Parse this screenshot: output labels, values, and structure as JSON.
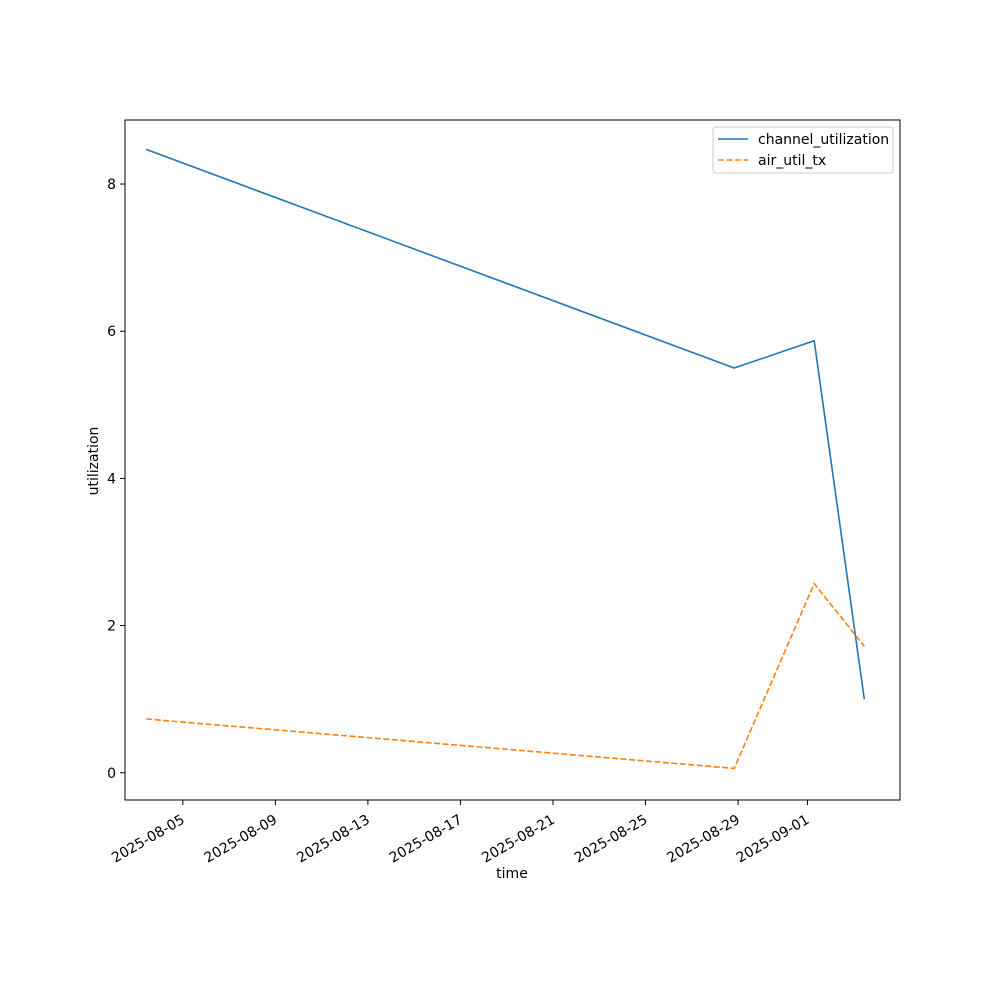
{
  "chart_data": {
    "type": "line",
    "xlabel": "time",
    "ylabel": "utilization",
    "x_ticks": [
      "2025-08-05",
      "2025-08-09",
      "2025-08-13",
      "2025-08-17",
      "2025-08-21",
      "2025-08-25",
      "2025-08-29",
      "2025-09-01"
    ],
    "y_ticks": [
      "0",
      "2",
      "4",
      "6",
      "8"
    ],
    "xlim": [
      "2025-08-02T12:00",
      "2025-09-05T00:00"
    ],
    "ylim": [
      -0.37,
      8.87
    ],
    "grid": false,
    "legend_position": "top-right",
    "series": [
      {
        "name": "channel_utilization",
        "color": "#1f77b4",
        "style": "solid",
        "points": [
          {
            "x": "2025-08-03T10:00",
            "y": 8.47
          },
          {
            "x": "2025-08-28T20:00",
            "y": 5.5
          },
          {
            "x": "2025-09-01T07:00",
            "y": 5.87
          },
          {
            "x": "2025-09-03T11:00",
            "y": 1.0
          }
        ]
      },
      {
        "name": "air_util_tx",
        "color": "#ff7f0e",
        "style": "dashed",
        "points": [
          {
            "x": "2025-08-03T10:00",
            "y": 0.73
          },
          {
            "x": "2025-08-28T20:00",
            "y": 0.06
          },
          {
            "x": "2025-09-01T07:00",
            "y": 2.57
          },
          {
            "x": "2025-09-03T11:00",
            "y": 1.72
          }
        ]
      }
    ]
  }
}
